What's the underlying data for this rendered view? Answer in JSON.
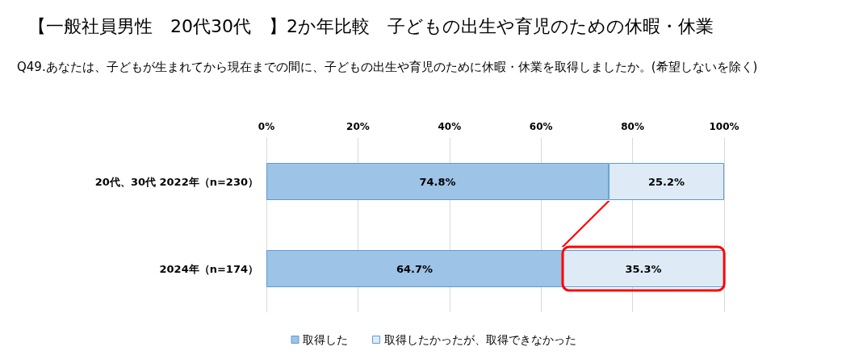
{
  "chart_data": {
    "type": "bar",
    "orientation": "horizontal",
    "stacked": true,
    "title": "【一般社員男性　20代30代　】2か年比較　子どもの出生や育児のための休暇・休業",
    "subtitle": "Q49.あなたは、子どもが生まれてから現在までの間に、子どもの出生や育児のために休暇・休業を取得しましたか。(希望しないを除く)",
    "categories": [
      "20代、30代 2022年（n=230）",
      "2024年（n=174）"
    ],
    "series": [
      {
        "name": "取得した",
        "color": "#9dc3e6",
        "values": [
          74.8,
          64.7
        ],
        "value_labels": [
          "74.8%",
          "64.7%"
        ]
      },
      {
        "name": "取得したかったが、取得できなかった",
        "color": "#deebf7",
        "values": [
          25.2,
          35.3
        ],
        "value_labels": [
          "25.2%",
          "35.3%"
        ]
      }
    ],
    "xlim": [
      0,
      100
    ],
    "xticks": [
      {
        "value": 0,
        "label": "0%"
      },
      {
        "value": 20,
        "label": "20%"
      },
      {
        "value": 40,
        "label": "40%"
      },
      {
        "value": 60,
        "label": "60%"
      },
      {
        "value": 80,
        "label": "80%"
      },
      {
        "value": 100,
        "label": "100%"
      }
    ],
    "grid": "x",
    "legend": "bottom"
  }
}
